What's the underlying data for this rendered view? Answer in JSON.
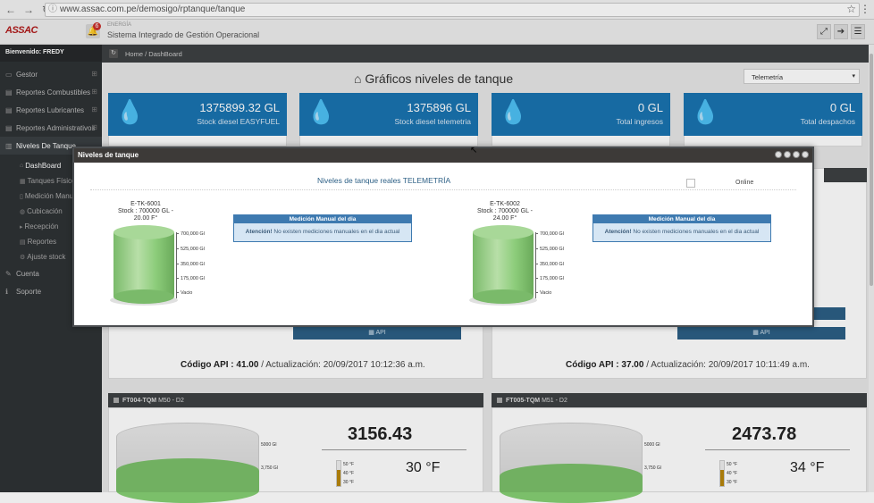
{
  "browser": {
    "url": "www.assac.com.pe/demosigo/rptanque/tanque"
  },
  "header": {
    "logo": "ASSAC",
    "notif_count": "6",
    "small_label": "ENERGÍA",
    "system_title": "Sistema Integrado de Gestión Operacional"
  },
  "sidebar": {
    "welcome": "Bienvenido: FREDY",
    "items": [
      {
        "label": "Gestor"
      },
      {
        "label": "Reportes Combustibles"
      },
      {
        "label": "Reportes Lubricantes"
      },
      {
        "label": "Reportes Administrativos"
      },
      {
        "label": "Niveles De Tanque"
      }
    ],
    "subitems": [
      {
        "label": "DashBoard"
      },
      {
        "label": "Tanques Físicos"
      },
      {
        "label": "Medición Manual"
      },
      {
        "label": "Cubicación"
      },
      {
        "label": "Recepción"
      },
      {
        "label": "Reportes"
      },
      {
        "label": "Ajuste stock"
      }
    ],
    "bottom": [
      {
        "label": "Cuenta"
      },
      {
        "label": "Soporte"
      }
    ]
  },
  "breadcrumb": {
    "home": "Home",
    "sep": "/",
    "current": "DashBoard"
  },
  "page": {
    "title": "Gráficos niveles de tanque",
    "select_value": "Telemetría"
  },
  "stats": [
    {
      "value": "1375899.32 GL",
      "label": "Stock diesel EASYFUEL"
    },
    {
      "value": "1375896 GL",
      "label": "Stock diesel telemetria"
    },
    {
      "value": "0 GL",
      "label": "Total ingresos"
    },
    {
      "value": "0 GL",
      "label": "Total despachos"
    }
  ],
  "cards_mid": [
    {
      "api": "API",
      "code_label": "Código API :",
      "code_val": "41.00",
      "update_label": "Actualización:",
      "update_val": "20/09/2017 10:12:36 a.m."
    },
    {
      "api": "API",
      "code_label": "Código API :",
      "code_val": "37.00",
      "update_label": "Actualización:",
      "update_val": "20/09/2017 10:11:49 a.m."
    }
  ],
  "cards_bottom": [
    {
      "head": "FT004-TQM",
      "head_sub": "M50 - D2",
      "value": "3156.43",
      "temp": "30 °F",
      "s1": "5000 Gl",
      "s2": "3,750 Gl",
      "t1": "50 °F",
      "t2": "40 °F",
      "t3": "30 °F"
    },
    {
      "head": "FT005-TQM",
      "head_sub": "M51 - D2",
      "value": "2473.78",
      "temp": "34 °F",
      "s1": "5000 Gl",
      "s2": "3,750 Gl",
      "t1": "50 °F",
      "t2": "40 °F",
      "t3": "30 °F"
    }
  ],
  "modal": {
    "title": "Niveles de tanque",
    "subtitle": "Niveles de tanque reales TELEMETRÍA",
    "online_label": "Online",
    "tanks": [
      {
        "name": "E-TK-6001",
        "stock": "Stock : 700000 GL -",
        "temp": "20.00 F°",
        "level": 1.0,
        "ticks": [
          "700,000 Gl",
          "525,000 Gl",
          "350,000 Gl",
          "175,000 Gl",
          "Vacio"
        ],
        "med_header": "Medición Manual del dia",
        "med_strong": "Atención!",
        "med_text": " No existen mediciones manuales en el dia actual"
      },
      {
        "name": "E-TK-6002",
        "stock": "Stock : 700000 GL -",
        "temp": "24.00 F°",
        "level": 1.0,
        "ticks": [
          "700,000 Gl",
          "525,000 Gl",
          "350,000 Gl",
          "175,000 Gl",
          "Vacio"
        ],
        "med_header": "Medición Manual del dia",
        "med_strong": "Atención!",
        "med_text": " No existen mediciones manuales en el dia actual"
      }
    ]
  }
}
